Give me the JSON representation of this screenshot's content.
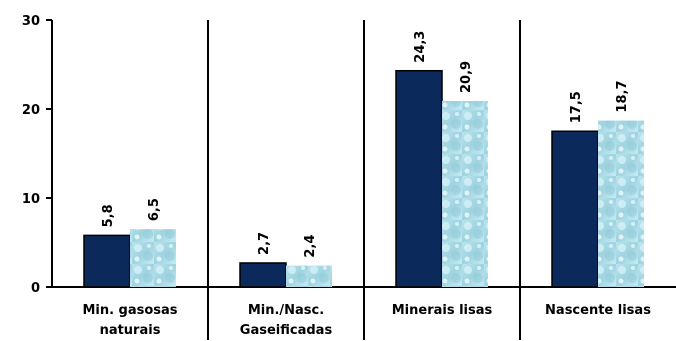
{
  "chart_data": {
    "type": "bar",
    "categories": [
      [
        "Min. gasosas",
        "naturais"
      ],
      [
        "Min./Nasc.",
        "Gaseificadas"
      ],
      [
        "Minerais lisas"
      ],
      [
        "Nascente lisas"
      ]
    ],
    "series": [
      {
        "values": [
          5.8,
          2.7,
          24.3,
          17.5
        ],
        "color": "#0b2a5b",
        "style": "solid"
      },
      {
        "values": [
          6.5,
          2.4,
          20.9,
          18.7
        ],
        "color": "#a8dae6",
        "style": "water-texture"
      }
    ],
    "data_labels": [
      [
        "5,8",
        "2,7",
        "24,3",
        "17,5"
      ],
      [
        "6,5",
        "2,4",
        "20,9",
        "18,7"
      ]
    ],
    "y_ticks": [
      0,
      10,
      20,
      30
    ],
    "y_tick_labels": [
      "0",
      "10",
      "20",
      "30"
    ],
    "ylim": [
      0,
      30
    ],
    "grid": false,
    "category_separators": true,
    "title": "",
    "xlabel": "",
    "ylabel": ""
  }
}
